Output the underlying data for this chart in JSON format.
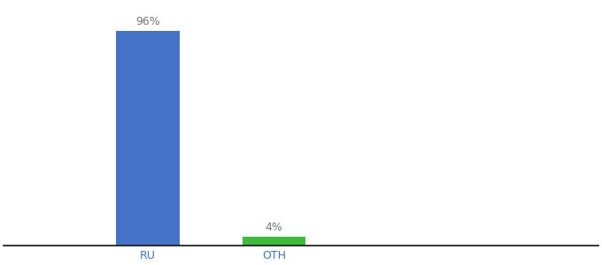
{
  "categories": [
    "RU",
    "OTH"
  ],
  "values": [
    96,
    4
  ],
  "bar_colors": [
    "#4472c4",
    "#3dbb3d"
  ],
  "label_texts": [
    "96%",
    "4%"
  ],
  "ylim": [
    0,
    108
  ],
  "background_color": "#ffffff",
  "label_fontsize": 9,
  "tick_fontsize": 9,
  "bar_width": 0.35,
  "label_color": "#777777",
  "tick_color": "#4472c4",
  "x_positions": [
    1.0,
    1.7
  ],
  "xlim": [
    0.2,
    3.5
  ]
}
